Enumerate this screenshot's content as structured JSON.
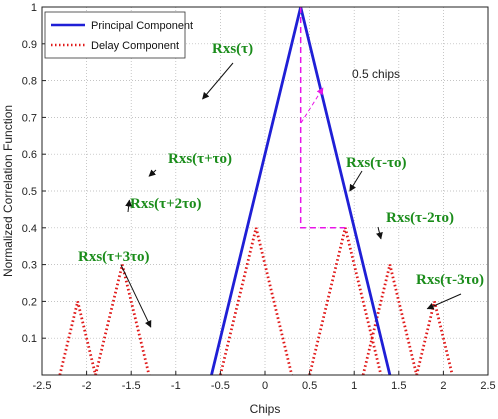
{
  "chart_data": {
    "type": "line",
    "xlabel": "Chips",
    "ylabel": "Normalized Correlation Function",
    "xlim": [
      -2.5,
      2.5
    ],
    "ylim": [
      0,
      1
    ],
    "x_ticks": [
      "-2.5",
      "-2",
      "-1.5",
      "-1",
      "-0.5",
      "0",
      "0.5",
      "1",
      "1.5",
      "2",
      "2.5"
    ],
    "y_ticks": [
      "0.1",
      "0.2",
      "0.3",
      "0.4",
      "0.5",
      "0.6",
      "0.7",
      "0.8",
      "0.9",
      "1"
    ],
    "grid": "dotted",
    "legend_position": "top-left",
    "colors": {
      "principal": "#1f1fd6",
      "delay": "#e01a1a",
      "annotation": "#1a8c1a",
      "measure": "#e815e8",
      "arrow": "#111111"
    },
    "series": [
      {
        "name": "Principal Component",
        "style": "solid",
        "peaks": [
          [
            0.4,
            1.0
          ]
        ]
      },
      {
        "name": "Delay Component",
        "style": "dotted",
        "peaks": [
          [
            -2.1,
            0.2
          ],
          [
            -1.6,
            0.3
          ],
          [
            -0.1,
            0.4
          ],
          [
            0.9,
            0.4
          ],
          [
            1.4,
            0.3
          ],
          [
            1.9,
            0.2
          ]
        ]
      }
    ],
    "annotations": [
      {
        "text": "Rxs(τ)",
        "arrow_to": [
          -0.7,
          0.75
        ]
      },
      {
        "text": "Rxs(τ+τo)",
        "arrow_to": [
          -1.3,
          0.54
        ]
      },
      {
        "text": "Rxs(τ+2τo)",
        "arrow_to": [
          -1.52,
          0.475
        ]
      },
      {
        "text": "Rxs(τ+3τo)",
        "arrow_to": [
          -1.28,
          0.13
        ]
      },
      {
        "text": "Rxs(τ-τo)",
        "arrow_to": [
          0.95,
          0.5
        ]
      },
      {
        "text": "Rxs(τ-2τo)",
        "arrow_to": [
          1.3,
          0.37
        ]
      },
      {
        "text": "Rxs(τ-3τo)",
        "arrow_to": [
          1.82,
          0.18
        ]
      },
      {
        "text": "0.5 chips",
        "arrow_to": [
          0.65,
          0.78
        ]
      }
    ]
  }
}
